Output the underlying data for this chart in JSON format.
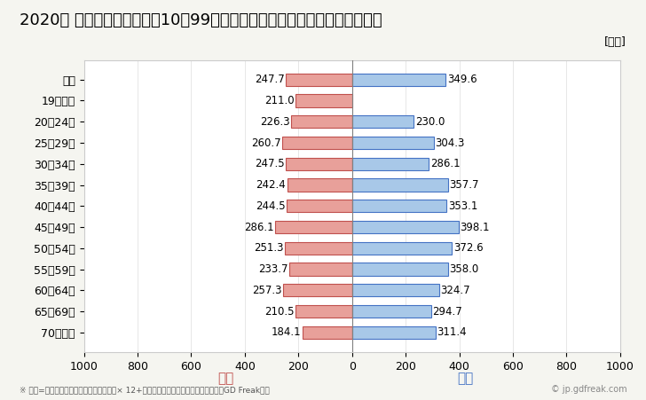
{
  "title": "2020年 民間企業（従業者数10〜99人）フルタイム労働者の男女別平均年収",
  "footnote": "※ 年収=「きまって支給する現金給与額」× 12+「年間賞与その他特別給与額」としてGD Freak推計",
  "watermark": "© jp.gdfreak.com",
  "unit_label": "[万円]",
  "female_label": "女性",
  "male_label": "男性",
  "categories": [
    "全体",
    "19歳以下",
    "20〜24歳",
    "25〜29歳",
    "30〜34歳",
    "35〜39歳",
    "40〜44歳",
    "45〜49歳",
    "50〜54歳",
    "55〜59歳",
    "60〜64歳",
    "65〜69歳",
    "70歳以上"
  ],
  "female_values": [
    247.7,
    211.0,
    226.3,
    260.7,
    247.5,
    242.4,
    244.5,
    286.1,
    251.3,
    233.7,
    257.3,
    210.5,
    184.1
  ],
  "male_values": [
    349.6,
    0,
    230.0,
    304.3,
    286.1,
    357.7,
    353.1,
    398.1,
    372.6,
    358.0,
    324.7,
    294.7,
    311.4
  ],
  "female_color": "#e8a09a",
  "male_color": "#a8c8e8",
  "female_border_color": "#c0504d",
  "male_border_color": "#4472c4",
  "female_label_color": "#c0504d",
  "male_label_color": "#4472c4",
  "background_color": "#f5f5f0",
  "plot_bg_color": "#ffffff",
  "xlim": [
    -1000,
    1000
  ],
  "xticks": [
    -1000,
    -800,
    -600,
    -400,
    -200,
    0,
    200,
    400,
    600,
    800,
    1000
  ],
  "xticklabels": [
    "1000",
    "800",
    "600",
    "400",
    "200",
    "0",
    "200",
    "400",
    "600",
    "800",
    "1000"
  ],
  "title_fontsize": 13,
  "tick_fontsize": 9,
  "label_fontsize": 9,
  "bar_height": 0.6
}
